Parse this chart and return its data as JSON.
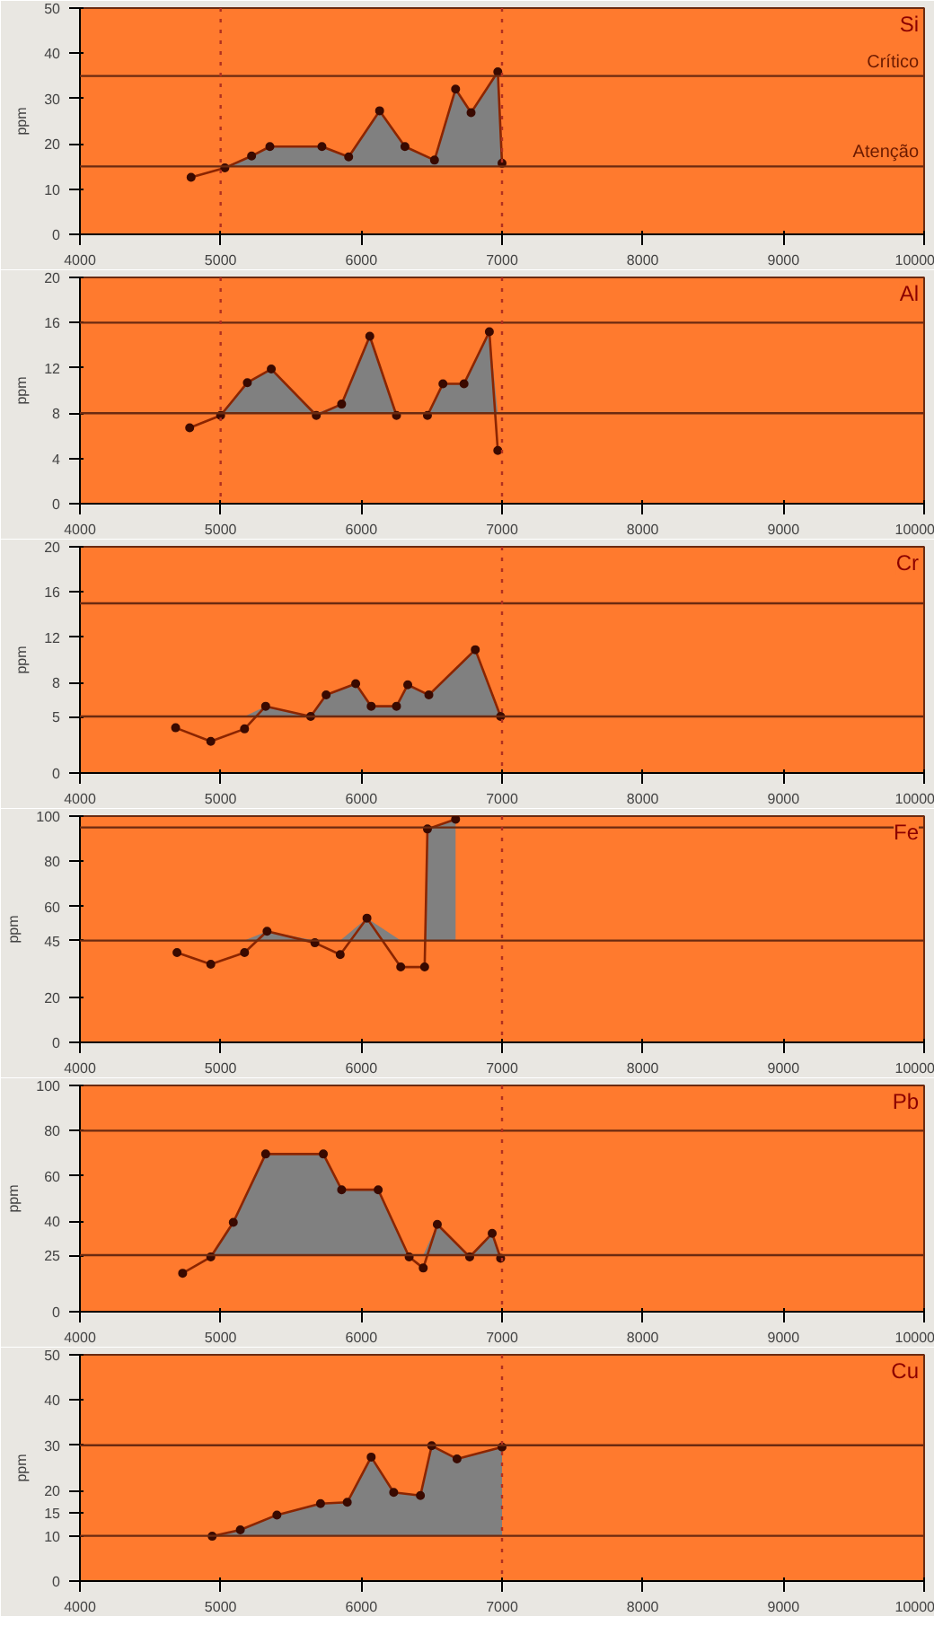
{
  "chart_data": [
    {
      "type": "line",
      "title": "Si",
      "ylabel": "ppm",
      "marker": "circle",
      "grid": false,
      "xlim": [
        4000,
        10000
      ],
      "xticks": [
        4000,
        5000,
        6000,
        7000,
        8000,
        9000,
        10000
      ],
      "ylim": [
        0,
        50
      ],
      "yticks": [
        0,
        10,
        20,
        30,
        40,
        50
      ],
      "x": [
        4790,
        5030,
        5220,
        5350,
        5720,
        5910,
        6130,
        6310,
        6520,
        6670,
        6780,
        6970,
        7000
      ],
      "series": [
        {
          "color": "#8b2500",
          "values": [
            12.6,
            14.7,
            17.3,
            19.4,
            19.4,
            17.1,
            27.3,
            19.4,
            16.4,
            32.1,
            26.9,
            35.9,
            15.7
          ],
          "lower": [
            15,
            15,
            15,
            15,
            15,
            15,
            15,
            15,
            15,
            15,
            15,
            15,
            15
          ],
          "upper": [
            15,
            15,
            17.3,
            19.4,
            19.4,
            17.1,
            27.3,
            19.4,
            16.4,
            32.1,
            26.9,
            35.9,
            15.7
          ]
        }
      ],
      "ref_lines": [
        {
          "axis": "y",
          "value": 35,
          "label": "Crítico",
          "color": "#6b2a10",
          "line_style": "solid"
        },
        {
          "axis": "y",
          "value": 15,
          "label": "Atenção",
          "color": "#6b2a10",
          "line_style": "solid"
        },
        {
          "axis": "x",
          "value": 5000,
          "color": "#b03020",
          "line_style": "dotted"
        },
        {
          "axis": "x",
          "value": 7000,
          "color": "#b03020",
          "line_style": "dotted"
        }
      ]
    },
    {
      "type": "line",
      "title": "Al",
      "ylabel": "ppm",
      "marker": "circle",
      "grid": false,
      "xlim": [
        4000,
        10000
      ],
      "xticks": [
        4000,
        5000,
        6000,
        7000,
        8000,
        9000,
        10000
      ],
      "ylim": [
        0,
        20
      ],
      "yticks": [
        0,
        4,
        8,
        12,
        16,
        20
      ],
      "x": [
        4780,
        5000,
        5190,
        5360,
        5680,
        5860,
        6060,
        6250,
        6360,
        6470,
        6580,
        6730,
        6910,
        6970
      ],
      "series": [
        {
          "color": "#8b2500",
          "values": [
            6.7,
            7.8,
            10.7,
            11.9,
            7.8,
            8.8,
            14.8,
            7.8,
            null,
            7.8,
            10.6,
            10.6,
            15.2,
            4.7
          ],
          "lower": [
            8,
            8,
            8,
            8,
            8,
            8,
            8,
            8,
            null,
            8,
            8,
            8,
            8,
            8
          ],
          "upper": [
            8,
            8,
            10.7,
            11.9,
            8,
            8.8,
            14.8,
            8,
            null,
            8,
            10.6,
            10.6,
            15.2,
            8
          ]
        }
      ],
      "ref_lines": [
        {
          "axis": "y",
          "value": 16,
          "color": "#6b2a10",
          "line_style": "solid"
        },
        {
          "axis": "y",
          "value": 8,
          "color": "#6b2a10",
          "line_style": "solid"
        },
        {
          "axis": "x",
          "value": 5000,
          "color": "#b03020",
          "line_style": "dotted"
        },
        {
          "axis": "x",
          "value": 7000,
          "color": "#b03020",
          "line_style": "dotted"
        }
      ]
    },
    {
      "type": "line",
      "title": "Cr",
      "ylabel": "ppm",
      "marker": "circle",
      "grid": false,
      "xlim": [
        4000,
        10000
      ],
      "xticks": [
        4000,
        5000,
        6000,
        7000,
        8000,
        9000,
        10000
      ],
      "ylim": [
        0,
        20
      ],
      "yticks": [
        0,
        5,
        8,
        12,
        16,
        20
      ],
      "x": [
        4680,
        4930,
        5170,
        5320,
        5640,
        5750,
        5960,
        6070,
        6250,
        6330,
        6480,
        6810,
        6990
      ],
      "series": [
        {
          "color": "#8b2500",
          "values": [
            4.0,
            2.8,
            3.9,
            5.9,
            5.0,
            6.9,
            7.9,
            5.9,
            5.9,
            7.8,
            6.9,
            10.9,
            5.0
          ],
          "lower": [
            5,
            5,
            5,
            5,
            5,
            5,
            5,
            5,
            5,
            5,
            5,
            5,
            5
          ],
          "upper": [
            5,
            5,
            5,
            5.9,
            5,
            6.9,
            7.9,
            5.9,
            5.9,
            7.8,
            6.9,
            10.9,
            5
          ]
        }
      ],
      "ref_lines": [
        {
          "axis": "y",
          "value": 15,
          "color": "#6b2a10",
          "line_style": "solid"
        },
        {
          "axis": "y",
          "value": 5,
          "color": "#6b2a10",
          "line_style": "solid"
        },
        {
          "axis": "x",
          "value": 7000,
          "color": "#b03020",
          "line_style": "dotted"
        }
      ]
    },
    {
      "type": "line",
      "title": "Fe",
      "ylabel": "ppm",
      "marker": "circle",
      "grid": false,
      "xlim": [
        4000,
        10000
      ],
      "xticks": [
        4000,
        5000,
        6000,
        7000,
        8000,
        9000,
        10000
      ],
      "ylim": [
        0,
        100
      ],
      "yticks": [
        0,
        20,
        45,
        60,
        80,
        100
      ],
      "x": [
        4690,
        4930,
        5170,
        5330,
        5670,
        5850,
        6040,
        6280,
        6450,
        6470,
        6670
      ],
      "series": [
        {
          "color": "#8b2500",
          "values": [
            39.7,
            34.5,
            39.7,
            49.1,
            44.0,
            38.8,
            54.9,
            33.3,
            33.3,
            94.3,
            98.6
          ],
          "lower": [
            45,
            45,
            45,
            45,
            45,
            45,
            45,
            45,
            45,
            45,
            45
          ],
          "upper": [
            45,
            45,
            45,
            49.1,
            45,
            45,
            54.9,
            45,
            45,
            94.3,
            98.6
          ]
        }
      ],
      "ref_lines": [
        {
          "axis": "y",
          "value": 95,
          "color": "#6b2a10",
          "line_style": "solid"
        },
        {
          "axis": "y",
          "value": 45,
          "color": "#6b2a10",
          "line_style": "solid"
        },
        {
          "axis": "x",
          "value": 7000,
          "color": "#b03020",
          "line_style": "dotted"
        }
      ]
    },
    {
      "type": "line",
      "title": "Pb",
      "ylabel": "ppm",
      "marker": "circle",
      "grid": false,
      "xlim": [
        4000,
        10000
      ],
      "xticks": [
        4000,
        5000,
        6000,
        7000,
        8000,
        9000,
        10000
      ],
      "ylim": [
        0,
        100
      ],
      "yticks": [
        0,
        25,
        40,
        60,
        80,
        100
      ],
      "x": [
        4730,
        4930,
        5090,
        5320,
        5730,
        5860,
        6120,
        6340,
        6440,
        6540,
        6770,
        6930,
        6990
      ],
      "series": [
        {
          "color": "#8b2500",
          "values": [
            17.0,
            24.2,
            39.5,
            69.7,
            69.7,
            53.9,
            53.9,
            24.2,
            19.3,
            38.6,
            24.2,
            34.6,
            23.6
          ],
          "lower": [
            25,
            25,
            25,
            25,
            25,
            25,
            25,
            25,
            25,
            25,
            25,
            25,
            25
          ],
          "upper": [
            25,
            25,
            39.5,
            69.7,
            69.7,
            53.9,
            53.9,
            25,
            25,
            38.6,
            25,
            34.6,
            25
          ]
        }
      ],
      "ref_lines": [
        {
          "axis": "y",
          "value": 80,
          "color": "#6b2a10",
          "line_style": "solid"
        },
        {
          "axis": "y",
          "value": 25,
          "color": "#6b2a10",
          "line_style": "solid"
        },
        {
          "axis": "x",
          "value": 7000,
          "color": "#b03020",
          "line_style": "dotted"
        }
      ]
    },
    {
      "type": "line",
      "title": "Cu",
      "ylabel": "ppm",
      "marker": "circle",
      "grid": false,
      "xlim": [
        4000,
        10000
      ],
      "xticks": [
        4000,
        5000,
        6000,
        7000,
        8000,
        9000,
        10000
      ],
      "ylim": [
        0,
        50
      ],
      "yticks": [
        0,
        10,
        15,
        20,
        30,
        40,
        50
      ],
      "x": [
        4940,
        5140,
        5400,
        5710,
        5900,
        6070,
        6230,
        6420,
        6500,
        6680,
        7000
      ],
      "series": [
        {
          "color": "#8b2500",
          "values": [
            9.9,
            11.3,
            14.6,
            17.1,
            17.4,
            27.4,
            19.6,
            18.9,
            29.9,
            27.0,
            29.6
          ],
          "lower": [
            10,
            10,
            10,
            10,
            10,
            10,
            10,
            10,
            10,
            10,
            10
          ],
          "upper": [
            10,
            11.3,
            14.6,
            17.1,
            17.4,
            27.4,
            19.6,
            18.9,
            29.9,
            27.0,
            29.6
          ]
        }
      ],
      "ref_lines": [
        {
          "axis": "y",
          "value": 30,
          "color": "#6b2a10",
          "line_style": "solid"
        },
        {
          "axis": "y",
          "value": 10,
          "color": "#6b2a10",
          "line_style": "solid"
        },
        {
          "axis": "x",
          "value": 7000,
          "color": "#b03020",
          "line_style": "dotted"
        }
      ]
    }
  ]
}
